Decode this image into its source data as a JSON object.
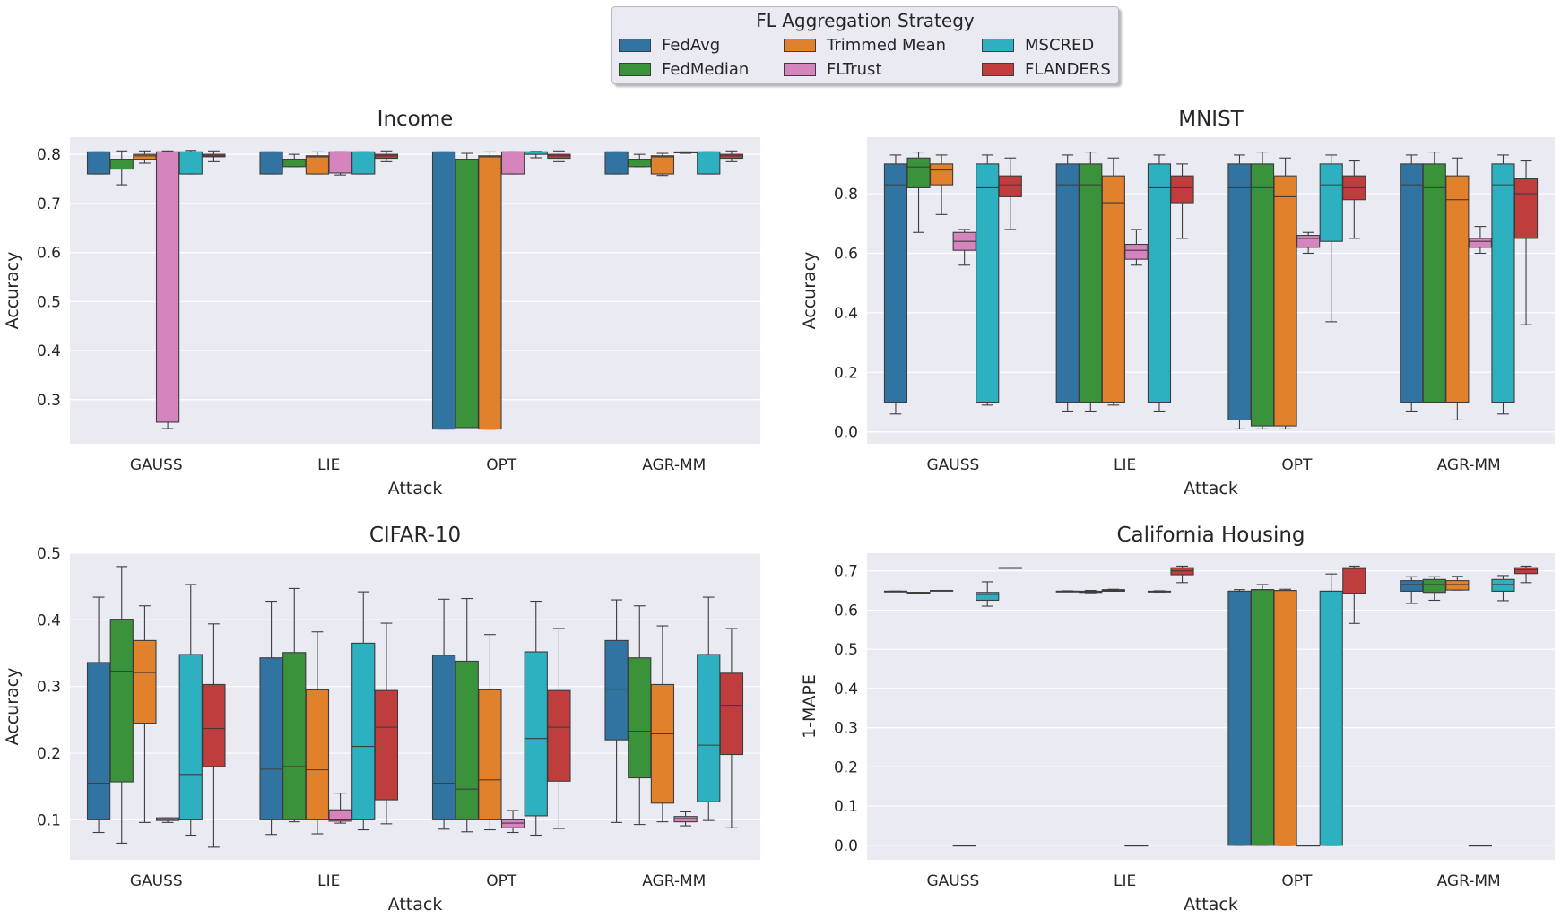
{
  "legend": {
    "title": "FL Aggregation Strategy",
    "entries": [
      {
        "name": "FedAvg",
        "color": "#3274a1"
      },
      {
        "name": "FedMedian",
        "color": "#3a923a"
      },
      {
        "name": "Trimmed Mean",
        "color": "#e1812c"
      },
      {
        "name": "FLTrust",
        "color": "#d684bd"
      },
      {
        "name": "MSCRED",
        "color": "#2db0c0"
      },
      {
        "name": "FLANDERS",
        "color": "#c03d3e"
      }
    ]
  },
  "chart_data": [
    {
      "type": "box",
      "title": "Income",
      "xlabel": "Attack",
      "ylabel": "Accuracy",
      "categories": [
        "GAUSS",
        "LIE",
        "OPT",
        "AGR-MM"
      ],
      "ylim": [
        0.21,
        0.835
      ],
      "yticks": [
        0.3,
        0.4,
        0.5,
        0.6,
        0.7,
        0.8
      ],
      "yticklabels": [
        "0.3",
        "0.4",
        "0.5",
        "0.6",
        "0.7",
        "0.8"
      ],
      "series": [
        {
          "name": "FedAvg",
          "boxes": [
            [
              0.76,
              0.76,
              0.805,
              0.805,
              0.805,
              0.805
            ],
            [
              0.76,
              0.76,
              0.805,
              0.805,
              0.805,
              0.805
            ],
            [
              0.24,
              0.24,
              0.805,
              0.805,
              0.805,
              0.805
            ],
            [
              0.76,
              0.76,
              0.805,
              0.805,
              0.805,
              0.805
            ]
          ]
        },
        {
          "name": "FedMedian",
          "boxes": [
            [
              0.738,
              0.77,
              0.79,
              0.79,
              0.79,
              0.807
            ],
            [
              0.775,
              0.775,
              0.79,
              0.79,
              0.79,
              0.8
            ],
            [
              0.243,
              0.243,
              0.79,
              0.79,
              0.79,
              0.802
            ],
            [
              0.775,
              0.775,
              0.79,
              0.79,
              0.79,
              0.8
            ]
          ]
        },
        {
          "name": "Trimmed Mean",
          "boxes": [
            [
              0.782,
              0.79,
              0.797,
              0.797,
              0.8,
              0.807
            ],
            [
              0.76,
              0.76,
              0.795,
              0.795,
              0.797,
              0.805
            ],
            [
              0.24,
              0.24,
              0.795,
              0.795,
              0.797,
              0.805
            ],
            [
              0.757,
              0.76,
              0.795,
              0.795,
              0.797,
              0.802
            ]
          ]
        },
        {
          "name": "FLTrust",
          "boxes": [
            [
              0.241,
              0.254,
              0.805,
              0.805,
              0.805,
              0.807
            ],
            [
              0.758,
              0.762,
              0.805,
              0.805,
              0.805,
              0.805
            ],
            [
              0.76,
              0.76,
              0.805,
              0.805,
              0.805,
              0.805
            ],
            [
              0.802,
              0.803,
              0.804,
              0.804,
              0.805,
              0.805
            ]
          ]
        },
        {
          "name": "MSCRED",
          "boxes": [
            [
              0.76,
              0.76,
              0.805,
              0.805,
              0.805,
              0.808
            ],
            [
              0.76,
              0.76,
              0.805,
              0.805,
              0.805,
              0.805
            ],
            [
              0.793,
              0.8,
              0.805,
              0.805,
              0.805,
              0.806
            ],
            [
              0.76,
              0.76,
              0.805,
              0.805,
              0.805,
              0.805
            ]
          ]
        },
        {
          "name": "FLANDERS",
          "boxes": [
            [
              0.785,
              0.795,
              0.797,
              0.797,
              0.8,
              0.807
            ],
            [
              0.785,
              0.792,
              0.797,
              0.797,
              0.8,
              0.807
            ],
            [
              0.785,
              0.792,
              0.797,
              0.797,
              0.8,
              0.807
            ],
            [
              0.785,
              0.792,
              0.797,
              0.797,
              0.8,
              0.807
            ]
          ]
        }
      ]
    },
    {
      "type": "box",
      "title": "MNIST",
      "xlabel": "Attack",
      "ylabel": "Accuracy",
      "categories": [
        "GAUSS",
        "LIE",
        "OPT",
        "AGR-MM"
      ],
      "ylim": [
        -0.04,
        0.99
      ],
      "yticks": [
        0.0,
        0.2,
        0.4,
        0.6,
        0.8
      ],
      "yticklabels": [
        "0.0",
        "0.2",
        "0.4",
        "0.6",
        "0.8"
      ],
      "series": [
        {
          "name": "FedAvg",
          "boxes": [
            [
              0.06,
              0.1,
              0.83,
              0.83,
              0.9,
              0.93
            ],
            [
              0.07,
              0.1,
              0.83,
              0.83,
              0.9,
              0.93
            ],
            [
              0.01,
              0.04,
              0.82,
              0.82,
              0.9,
              0.93
            ],
            [
              0.07,
              0.1,
              0.83,
              0.83,
              0.9,
              0.93
            ]
          ]
        },
        {
          "name": "FedMedian",
          "boxes": [
            [
              0.67,
              0.82,
              0.89,
              0.89,
              0.92,
              0.94
            ],
            [
              0.07,
              0.1,
              0.83,
              0.83,
              0.9,
              0.94
            ],
            [
              0.01,
              0.02,
              0.82,
              0.82,
              0.9,
              0.94
            ],
            [
              0.1,
              0.1,
              0.82,
              0.82,
              0.9,
              0.94
            ]
          ]
        },
        {
          "name": "Trimmed Mean",
          "boxes": [
            [
              0.73,
              0.83,
              0.88,
              0.88,
              0.9,
              0.93
            ],
            [
              0.09,
              0.1,
              0.77,
              0.77,
              0.86,
              0.92
            ],
            [
              0.01,
              0.02,
              0.79,
              0.79,
              0.86,
              0.92
            ],
            [
              0.04,
              0.1,
              0.78,
              0.78,
              0.86,
              0.92
            ]
          ]
        },
        {
          "name": "FLTrust",
          "boxes": [
            [
              0.56,
              0.61,
              0.64,
              0.64,
              0.67,
              0.68
            ],
            [
              0.56,
              0.58,
              0.61,
              0.61,
              0.63,
              0.68
            ],
            [
              0.6,
              0.62,
              0.65,
              0.65,
              0.66,
              0.67
            ],
            [
              0.6,
              0.62,
              0.64,
              0.64,
              0.65,
              0.69
            ]
          ]
        },
        {
          "name": "MSCRED",
          "boxes": [
            [
              0.09,
              0.1,
              0.82,
              0.82,
              0.9,
              0.93
            ],
            [
              0.07,
              0.1,
              0.82,
              0.82,
              0.9,
              0.93
            ],
            [
              0.37,
              0.64,
              0.83,
              0.83,
              0.9,
              0.93
            ],
            [
              0.06,
              0.1,
              0.83,
              0.83,
              0.9,
              0.93
            ]
          ]
        },
        {
          "name": "FLANDERS",
          "boxes": [
            [
              0.68,
              0.79,
              0.83,
              0.83,
              0.86,
              0.92
            ],
            [
              0.65,
              0.77,
              0.82,
              0.82,
              0.86,
              0.9
            ],
            [
              0.65,
              0.78,
              0.82,
              0.82,
              0.86,
              0.91
            ],
            [
              0.36,
              0.65,
              0.8,
              0.8,
              0.85,
              0.91
            ]
          ]
        }
      ]
    },
    {
      "type": "box",
      "title": "CIFAR-10",
      "xlabel": "Attack",
      "ylabel": "Accuracy",
      "categories": [
        "GAUSS",
        "LIE",
        "OPT",
        "AGR-MM"
      ],
      "ylim": [
        0.04,
        0.5
      ],
      "yticks": [
        0.1,
        0.2,
        0.3,
        0.4,
        0.5
      ],
      "yticklabels": [
        "0.1",
        "0.2",
        "0.3",
        "0.4",
        "0.5"
      ],
      "series": [
        {
          "name": "FedAvg",
          "boxes": [
            [
              0.081,
              0.1,
              0.155,
              0.155,
              0.336,
              0.434
            ],
            [
              0.078,
              0.1,
              0.176,
              0.176,
              0.343,
              0.428
            ],
            [
              0.086,
              0.1,
              0.155,
              0.155,
              0.347,
              0.431
            ],
            [
              0.096,
              0.22,
              0.296,
              0.296,
              0.369,
              0.43
            ]
          ]
        },
        {
          "name": "FedMedian",
          "boxes": [
            [
              0.065,
              0.157,
              0.323,
              0.323,
              0.401,
              0.48
            ],
            [
              0.097,
              0.1,
              0.18,
              0.18,
              0.351,
              0.447
            ],
            [
              0.082,
              0.1,
              0.146,
              0.146,
              0.338,
              0.432
            ],
            [
              0.093,
              0.163,
              0.233,
              0.233,
              0.343,
              0.421
            ]
          ]
        },
        {
          "name": "Trimmed Mean",
          "boxes": [
            [
              0.096,
              0.245,
              0.321,
              0.321,
              0.369,
              0.421
            ],
            [
              0.079,
              0.1,
              0.175,
              0.175,
              0.295,
              0.382
            ],
            [
              0.085,
              0.1,
              0.16,
              0.16,
              0.295,
              0.378
            ],
            [
              0.097,
              0.125,
              0.229,
              0.229,
              0.303,
              0.391
            ]
          ]
        },
        {
          "name": "FLTrust",
          "boxes": [
            [
              0.096,
              0.099,
              0.101,
              0.101,
              0.103,
              0.103
            ],
            [
              0.095,
              0.098,
              0.1,
              0.1,
              0.115,
              0.14
            ],
            [
              0.081,
              0.088,
              0.095,
              0.095,
              0.1,
              0.114
            ],
            [
              0.091,
              0.097,
              0.102,
              0.102,
              0.105,
              0.112
            ]
          ]
        },
        {
          "name": "MSCRED",
          "boxes": [
            [
              0.077,
              0.1,
              0.168,
              0.168,
              0.348,
              0.453
            ],
            [
              0.085,
              0.1,
              0.21,
              0.21,
              0.365,
              0.442
            ],
            [
              0.077,
              0.106,
              0.222,
              0.222,
              0.352,
              0.428
            ],
            [
              0.099,
              0.127,
              0.212,
              0.212,
              0.348,
              0.434
            ]
          ]
        },
        {
          "name": "FLANDERS",
          "boxes": [
            [
              0.059,
              0.18,
              0.237,
              0.237,
              0.303,
              0.394
            ],
            [
              0.094,
              0.13,
              0.239,
              0.239,
              0.294,
              0.395
            ],
            [
              0.087,
              0.158,
              0.239,
              0.239,
              0.294,
              0.387
            ],
            [
              0.088,
              0.198,
              0.272,
              0.272,
              0.32,
              0.387
            ]
          ]
        }
      ]
    },
    {
      "type": "box",
      "title": "California Housing",
      "xlabel": "Attack",
      "ylabel": "1-MAPE",
      "categories": [
        "GAUSS",
        "LIE",
        "OPT",
        "AGR-MM"
      ],
      "ylim": [
        -0.037,
        0.745
      ],
      "yticks": [
        0.0,
        0.1,
        0.2,
        0.3,
        0.4,
        0.5,
        0.6,
        0.7
      ],
      "yticklabels": [
        "0.0",
        "0.1",
        "0.2",
        "0.3",
        "0.4",
        "0.5",
        "0.6",
        "0.7"
      ],
      "series": [
        {
          "name": "FedAvg",
          "boxes": [
            [
              0.648,
              0.648,
              0.648,
              0.648,
              0.648,
              0.648
            ],
            [
              0.647,
              0.647,
              0.648,
              0.648,
              0.648,
              0.649
            ],
            [
              0.0,
              0.0,
              0.648,
              0.648,
              0.648,
              0.652
            ],
            [
              0.617,
              0.648,
              0.665,
              0.665,
              0.675,
              0.685
            ]
          ]
        },
        {
          "name": "FedMedian",
          "boxes": [
            [
              0.645,
              0.645,
              0.645,
              0.645,
              0.645,
              0.645
            ],
            [
              0.644,
              0.645,
              0.646,
              0.646,
              0.648,
              0.65
            ],
            [
              0.0,
              0.0,
              0.652,
              0.652,
              0.652,
              0.665
            ],
            [
              0.625,
              0.645,
              0.665,
              0.665,
              0.678,
              0.685
            ]
          ]
        },
        {
          "name": "Trimmed Mean",
          "boxes": [
            [
              0.65,
              0.65,
              0.65,
              0.65,
              0.65,
              0.65
            ],
            [
              0.648,
              0.648,
              0.65,
              0.65,
              0.652,
              0.653
            ],
            [
              0.0,
              0.0,
              0.65,
              0.65,
              0.65,
              0.653
            ],
            [
              0.651,
              0.651,
              0.665,
              0.665,
              0.675,
              0.686
            ]
          ]
        },
        {
          "name": "FLTrust",
          "boxes": [
            [
              0.0,
              0.0,
              0.0,
              0.0,
              0.0,
              0.0
            ],
            [
              0.0,
              0.0,
              0.0,
              0.0,
              0.0,
              0.0
            ],
            [
              0.0,
              0.0,
              0.0,
              0.0,
              0.0,
              0.0
            ],
            [
              0.0,
              0.0,
              0.0,
              0.0,
              0.0,
              0.0
            ]
          ]
        },
        {
          "name": "MSCRED",
          "boxes": [
            [
              0.61,
              0.625,
              0.64,
              0.64,
              0.645,
              0.672
            ],
            [
              0.646,
              0.646,
              0.647,
              0.647,
              0.648,
              0.649
            ],
            [
              0.0,
              0.0,
              0.648,
              0.648,
              0.648,
              0.692
            ],
            [
              0.624,
              0.648,
              0.665,
              0.665,
              0.678,
              0.688
            ]
          ]
        },
        {
          "name": "FLANDERS",
          "boxes": [
            [
              0.708,
              0.708,
              0.708,
              0.708,
              0.708,
              0.708
            ],
            [
              0.67,
              0.69,
              0.7,
              0.7,
              0.708,
              0.712
            ],
            [
              0.566,
              0.643,
              0.706,
              0.706,
              0.708,
              0.712
            ],
            [
              0.67,
              0.693,
              0.703,
              0.703,
              0.708,
              0.712
            ]
          ]
        }
      ]
    }
  ]
}
